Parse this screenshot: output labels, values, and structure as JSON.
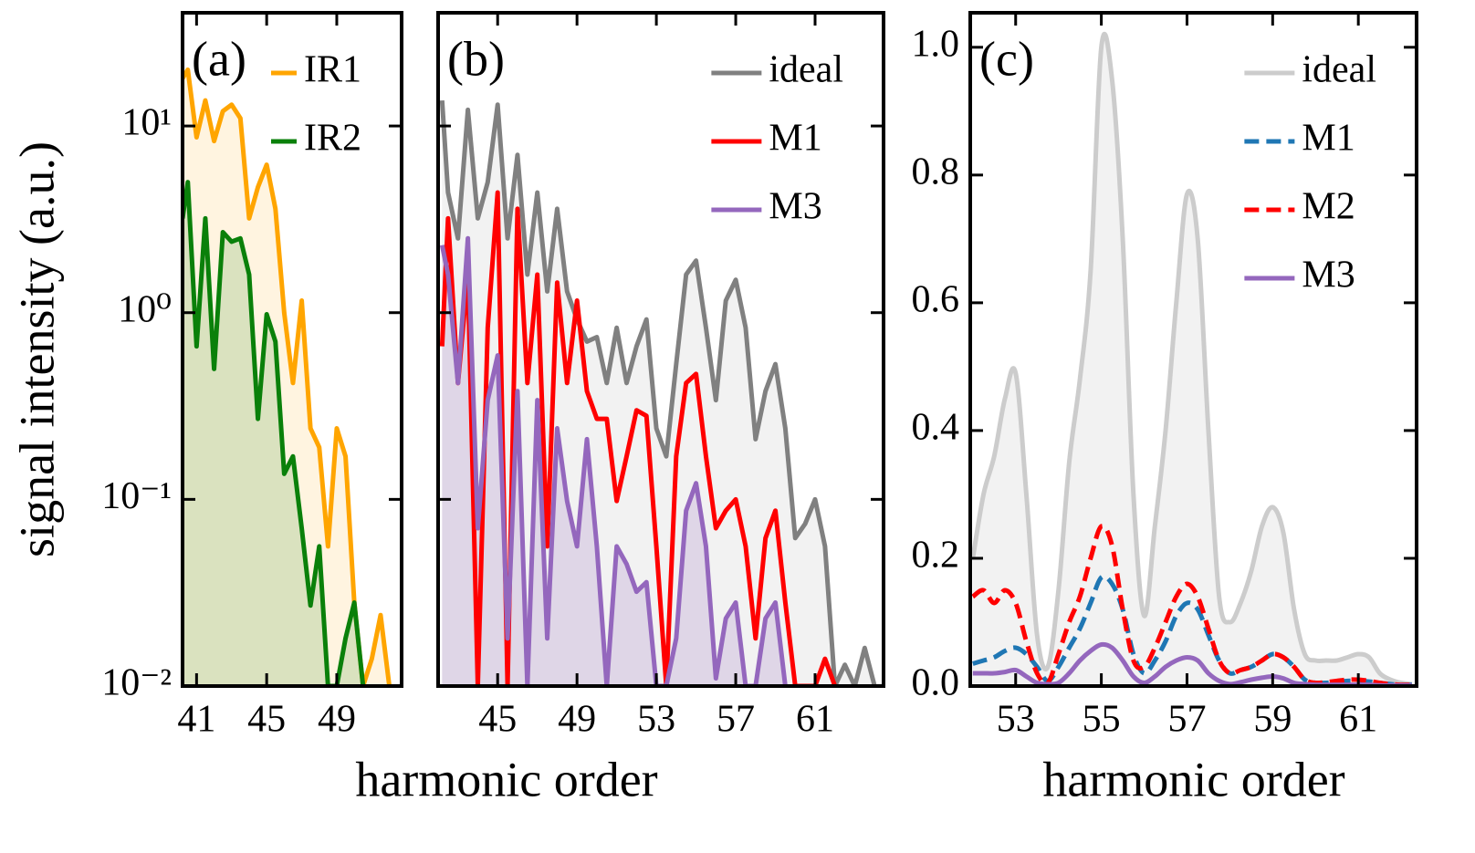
{
  "chart_data": [
    {
      "type": "line",
      "panel_label": "(a)",
      "ylabel": "signal intensity (a.u.)",
      "log_y": true,
      "legend": "upper right",
      "xlim": [
        40.2,
        52.7
      ],
      "ylim": [
        0.01,
        40.4
      ],
      "xticks": [
        41,
        45,
        49
      ],
      "yticks": [
        {
          "value": 0.01,
          "label": "10⁻²"
        },
        {
          "value": 0.1,
          "label": "10⁻¹"
        },
        {
          "value": 1,
          "label": "10⁰"
        },
        {
          "value": 10,
          "label": "10¹"
        }
      ],
      "x": [
        40.2,
        40.5,
        41,
        41.5,
        42,
        42.5,
        43,
        43.5,
        44,
        44.5,
        45,
        45.5,
        46,
        46.5,
        47,
        47.5,
        48,
        48.5,
        49,
        49.5,
        50,
        50.5,
        51,
        51.5,
        52
      ],
      "series": [
        {
          "name": "IR1",
          "color": "#ffa500",
          "fill_opacity": 0.12,
          "values": [
            18,
            20,
            8.7,
            13.7,
            8.3,
            12,
            13,
            11,
            3.2,
            4.7,
            6.2,
            3.6,
            1.0,
            0.42,
            1.16,
            0.24,
            0.19,
            0.056,
            0.24,
            0.17,
            0.028,
            0.01,
            0.014,
            0.024,
            0.01
          ]
        },
        {
          "name": "IR2",
          "color": "#0a800a",
          "fill_opacity": 0.15,
          "values": [
            3.2,
            5,
            0.66,
            3.2,
            0.5,
            2.7,
            2.4,
            2.5,
            1.6,
            0.27,
            0.98,
            0.7,
            0.137,
            0.17,
            0.07,
            0.027,
            0.056,
            0.01,
            0.01,
            0.018,
            0.028,
            0.01,
            null,
            null,
            null
          ]
        }
      ]
    },
    {
      "type": "line",
      "panel_label": "(b)",
      "xlabel": "harmonic order",
      "log_y": true,
      "ytick_labels": false,
      "legend": "upper right",
      "xlim": [
        42.0,
        64.45
      ],
      "ylim": [
        0.01,
        40.4
      ],
      "xticks": [
        45,
        49,
        53,
        57,
        61
      ],
      "yticks": [
        0.01,
        0.1,
        1,
        10
      ],
      "x": [
        42.2,
        42.5,
        43,
        43.5,
        44,
        44.5,
        45,
        45.5,
        46,
        46.5,
        47,
        47.5,
        48,
        48.5,
        49,
        49.5,
        50,
        50.5,
        51,
        51.5,
        52,
        52.5,
        53,
        53.5,
        54,
        54.5,
        55,
        55.5,
        56,
        56.5,
        57,
        57.5,
        58,
        58.5,
        59,
        59.5,
        60,
        60.5,
        61,
        61.5,
        62,
        62.5,
        63,
        63.5,
        64
      ],
      "series": [
        {
          "name": "ideal",
          "color": "#808080",
          "fill_opacity": 0.1,
          "values": [
            13.7,
            4.4,
            2.5,
            12.2,
            3.2,
            5,
            13,
            2.5,
            7,
            1.6,
            4.4,
            1.3,
            3.6,
            1.3,
            0.92,
            0.7,
            0.74,
            0.42,
            0.83,
            0.42,
            0.66,
            0.92,
            0.24,
            0.17,
            0.53,
            1.6,
            1.9,
            0.83,
            0.34,
            1.16,
            1.5,
            0.83,
            0.21,
            0.38,
            0.53,
            0.24,
            0.062,
            0.074,
            0.1,
            0.056,
            0.01,
            0.013,
            0.01,
            0.016,
            0.01
          ]
        },
        {
          "name": "M1",
          "color": "#ff0000",
          "values": [
            0.66,
            3.2,
            0.42,
            1.6,
            0.01,
            0.83,
            4.4,
            0.01,
            3.6,
            0.42,
            1.6,
            0.056,
            1.45,
            0.42,
            1.16,
            0.38,
            0.27,
            0.27,
            0.098,
            0.17,
            0.3,
            0.28,
            0.056,
            0.01,
            0.17,
            0.42,
            0.47,
            0.17,
            0.07,
            0.087,
            0.1,
            0.056,
            0.018,
            0.062,
            0.087,
            0.028,
            0.01,
            0.01,
            0.01,
            0.014,
            0.01,
            null,
            null,
            null,
            null
          ]
        },
        {
          "name": "M3",
          "color": "#9467bd",
          "fill_opacity": 0.2,
          "values": [
            2.3,
            1.6,
            0.42,
            2.5,
            0.07,
            0.34,
            0.59,
            0.018,
            0.38,
            0.01,
            0.34,
            0.018,
            0.24,
            0.098,
            0.056,
            0.21,
            0.056,
            0.01,
            0.056,
            0.045,
            0.032,
            0.036,
            0.01,
            0.01,
            0.018,
            0.087,
            0.122,
            0.056,
            0.011,
            0.023,
            0.028,
            0.01,
            0.01,
            0.023,
            0.028,
            0.01,
            null,
            null,
            null,
            null,
            null,
            null,
            null,
            null,
            null
          ]
        }
      ]
    },
    {
      "type": "line",
      "panel_label": "(c)",
      "xlabel": "harmonic order",
      "smooth": true,
      "legend": "upper right",
      "xlim": [
        51.94,
        62.36
      ],
      "ylim": [
        0,
        1.054
      ],
      "xticks": [
        53,
        55,
        57,
        59,
        61
      ],
      "yticks": [
        {
          "value": 0,
          "label": "0.0"
        },
        0.2,
        0.4,
        0.6,
        0.8,
        {
          "value": 1,
          "label": "1.0"
        }
      ],
      "x": [
        52,
        52.25,
        52.5,
        52.75,
        53,
        53.25,
        53.5,
        53.75,
        54,
        54.25,
        54.5,
        54.75,
        55,
        55.25,
        55.5,
        55.75,
        56,
        56.25,
        56.5,
        56.75,
        57,
        57.25,
        57.5,
        57.75,
        58,
        58.25,
        58.5,
        58.75,
        59,
        59.25,
        59.5,
        59.75,
        60,
        60.25,
        60.5,
        60.75,
        61,
        61.25,
        61.5,
        61.75,
        62,
        62.25
      ],
      "series": [
        {
          "name": "ideal",
          "color": "#cccccc",
          "fill_opacity": 0.25,
          "values": [
            0.2,
            0.3,
            0.36,
            0.45,
            0.49,
            0.3,
            0.08,
            0.03,
            0.15,
            0.35,
            0.48,
            0.65,
            1.0,
            0.95,
            0.7,
            0.3,
            0.11,
            0.25,
            0.4,
            0.6,
            0.77,
            0.7,
            0.4,
            0.14,
            0.1,
            0.13,
            0.18,
            0.25,
            0.28,
            0.24,
            0.12,
            0.05,
            0.04,
            0.04,
            0.04,
            0.045,
            0.05,
            0.045,
            0.02,
            0.01,
            0.005,
            0.003
          ]
        },
        {
          "name": "M1",
          "color": "#1f77b4",
          "dashed": true,
          "values": [
            0.035,
            0.04,
            0.045,
            0.055,
            0.06,
            0.05,
            0.03,
            0.008,
            0.03,
            0.06,
            0.09,
            0.13,
            0.17,
            0.16,
            0.12,
            0.05,
            0.02,
            0.04,
            0.07,
            0.11,
            0.13,
            0.12,
            0.08,
            0.04,
            0.02,
            0.025,
            0.03,
            0.04,
            0.05,
            0.045,
            0.03,
            0.01,
            0.005,
            0.005,
            0.006,
            0.008,
            0.008,
            0.007,
            0.005,
            0.003,
            0.002,
            0.002
          ]
        },
        {
          "name": "M2",
          "color": "#ff0000",
          "dashed": true,
          "values": [
            0.14,
            0.15,
            0.13,
            0.15,
            0.13,
            0.07,
            0.02,
            0.005,
            0.05,
            0.1,
            0.14,
            0.2,
            0.25,
            0.22,
            0.12,
            0.04,
            0.03,
            0.06,
            0.1,
            0.14,
            0.16,
            0.14,
            0.09,
            0.04,
            0.02,
            0.025,
            0.03,
            0.04,
            0.05,
            0.045,
            0.03,
            0.01,
            0.005,
            0.006,
            0.008,
            0.01,
            0.01,
            0.008,
            0.005,
            0.003,
            0.002,
            0.002
          ]
        },
        {
          "name": "M3",
          "color": "#9467bd",
          "values": [
            0.02,
            0.02,
            0.02,
            0.022,
            0.025,
            0.015,
            0.005,
            0.003,
            0.005,
            0.02,
            0.04,
            0.055,
            0.065,
            0.06,
            0.04,
            0.015,
            0.005,
            0.015,
            0.03,
            0.04,
            0.045,
            0.04,
            0.02,
            0.008,
            0.003,
            0.006,
            0.01,
            0.013,
            0.015,
            0.012,
            0.005,
            0.003,
            0.002,
            0.002,
            0.002,
            0.002,
            0.002,
            0.002,
            0.001,
            0.001,
            0.001,
            0.001
          ]
        }
      ]
    }
  ]
}
